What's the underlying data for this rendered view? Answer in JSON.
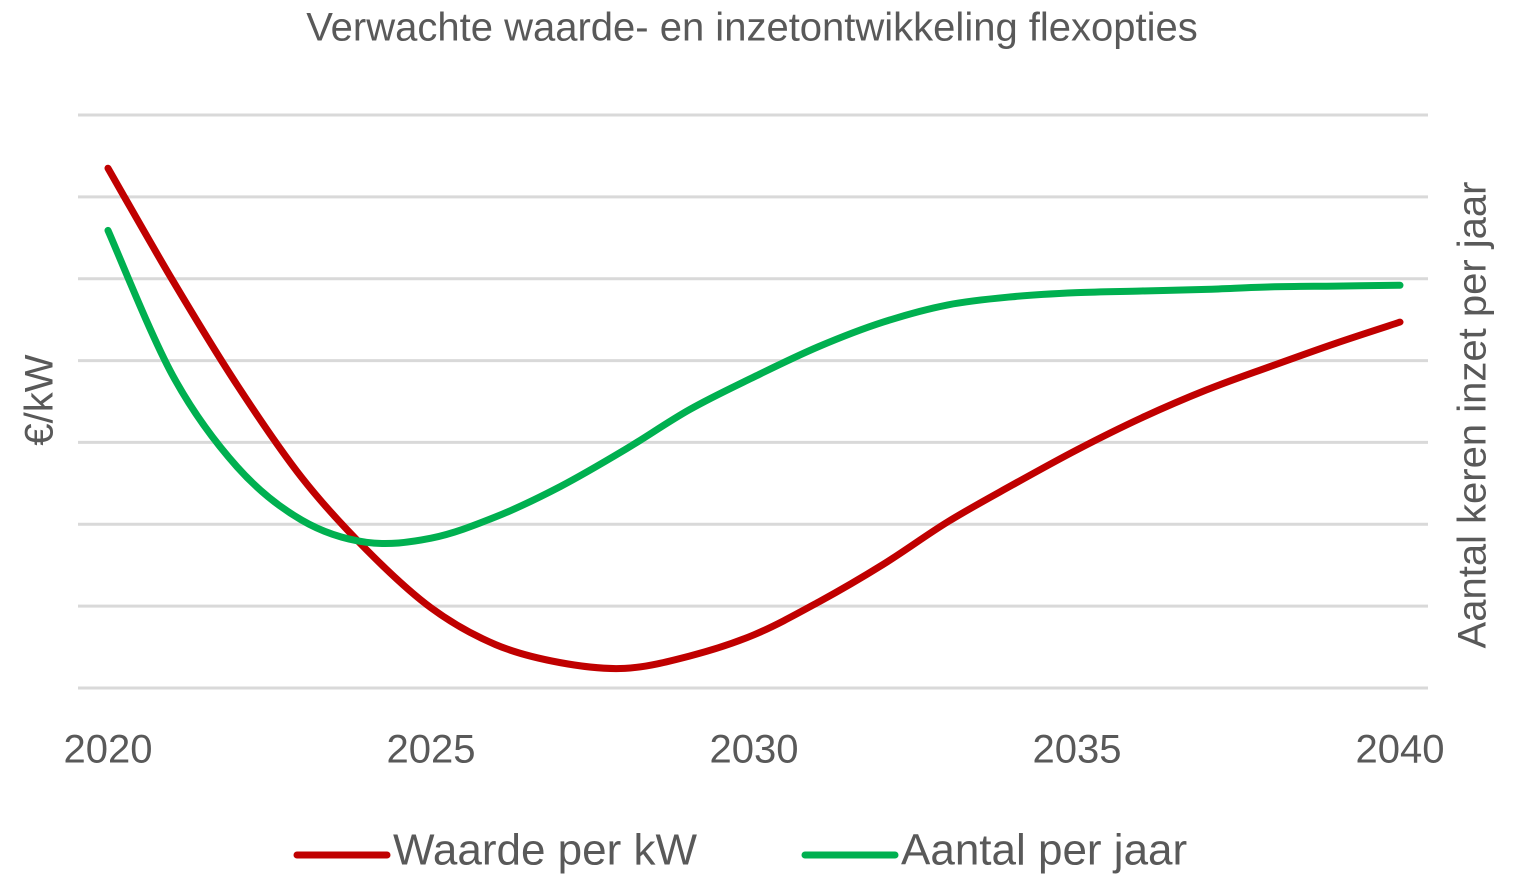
{
  "chart_data": {
    "type": "line",
    "title": "Verwachte waarde- en inzetontwikkeling flexopties",
    "y_label": "€/kW",
    "y2_label": "Aantal keren inzet per jaar",
    "x": [
      2020,
      2021,
      2022,
      2023,
      2024,
      2025,
      2026,
      2027,
      2028,
      2029,
      2030,
      2031,
      2032,
      2033,
      2034,
      2035,
      2036,
      2037,
      2038,
      2039,
      2040
    ],
    "xlim": [
      2020,
      2040
    ],
    "xticks": [
      2020,
      2025,
      2030,
      2035,
      2040
    ],
    "ylim": [
      0,
      7
    ],
    "yticks": [
      0,
      1,
      2,
      3,
      4,
      5,
      6,
      7
    ],
    "grid": true,
    "legend": "bottom",
    "series": [
      {
        "name": "Waarde per kW",
        "color": "#c00000",
        "values": [
          6.35,
          4.98,
          3.7,
          2.57,
          1.69,
          0.98,
          0.53,
          0.31,
          0.24,
          0.39,
          0.65,
          1.05,
          1.51,
          2.03,
          2.48,
          2.91,
          3.3,
          3.64,
          3.93,
          4.21,
          4.47
        ]
      },
      {
        "name": "Aantal per jaar",
        "color": "#00b050",
        "values": [
          5.59,
          3.82,
          2.7,
          2.05,
          1.78,
          1.83,
          2.09,
          2.46,
          2.91,
          3.4,
          3.8,
          4.17,
          4.47,
          4.68,
          4.78,
          4.83,
          4.85,
          4.87,
          4.9,
          4.91,
          4.92
        ]
      }
    ]
  }
}
